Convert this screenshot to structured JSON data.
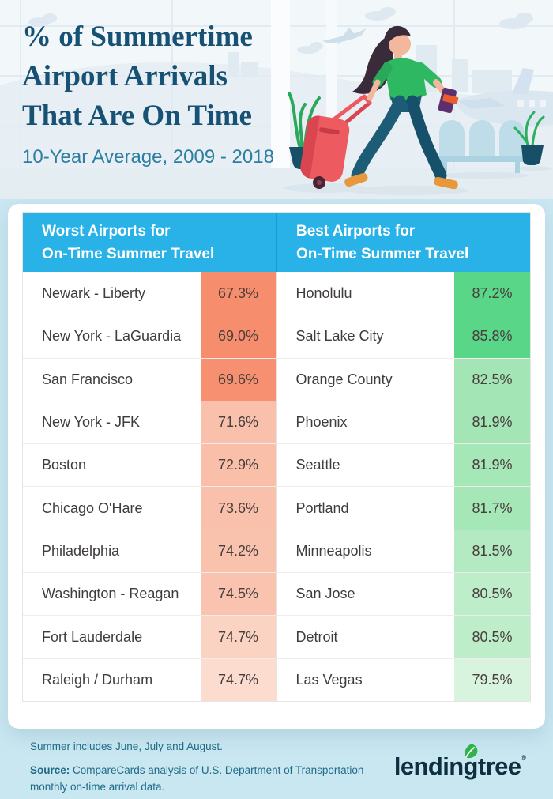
{
  "header": {
    "title_lines": [
      "% of Summertime",
      "Airport Arrivals",
      "That Are On Time"
    ],
    "subtitle": "10-Year Average, 2009 - 2018"
  },
  "table": {
    "worst": {
      "header_line1": "Worst Airports for",
      "header_line2": "On-Time Summer Travel",
      "rows": [
        {
          "airport": "Newark - Liberty",
          "value": "67.3%",
          "color": "#f68e6d"
        },
        {
          "airport": "New York - LaGuardia",
          "value": "69.0%",
          "color": "#f68e6d"
        },
        {
          "airport": "San Francisco",
          "value": "69.6%",
          "color": "#f69071"
        },
        {
          "airport": "New York - JFK",
          "value": "71.6%",
          "color": "#f9c0ab"
        },
        {
          "airport": "Boston",
          "value": "72.9%",
          "color": "#f9bfa9"
        },
        {
          "airport": "Chicago O'Hare",
          "value": "73.6%",
          "color": "#f9c0ab"
        },
        {
          "airport": "Philadelphia",
          "value": "74.2%",
          "color": "#f9c2ad"
        },
        {
          "airport": "Washington - Reagan",
          "value": "74.5%",
          "color": "#f9c3af"
        },
        {
          "airport": "Fort Lauderdale",
          "value": "74.7%",
          "color": "#fbd3c3"
        },
        {
          "airport": "Raleigh / Durham",
          "value": "74.7%",
          "color": "#fcdccf"
        }
      ]
    },
    "best": {
      "header_line1": "Best Airports for",
      "header_line2": "On-Time Summer Travel",
      "rows": [
        {
          "airport": "Honolulu",
          "value": "87.2%",
          "color": "#5ad689"
        },
        {
          "airport": "Salt Lake City",
          "value": "85.8%",
          "color": "#5ad689"
        },
        {
          "airport": "Orange County",
          "value": "82.5%",
          "color": "#a3e5b5"
        },
        {
          "airport": "Phoenix",
          "value": "81.9%",
          "color": "#a3e5b5"
        },
        {
          "airport": "Seattle",
          "value": "81.9%",
          "color": "#a6e7b8"
        },
        {
          "airport": "Portland",
          "value": "81.7%",
          "color": "#a6e7b8"
        },
        {
          "airport": "Minneapolis",
          "value": "81.5%",
          "color": "#b4eac1"
        },
        {
          "airport": "San Jose",
          "value": "80.5%",
          "color": "#bdedc9"
        },
        {
          "airport": "Detroit",
          "value": "80.5%",
          "color": "#bdedc9"
        },
        {
          "airport": "Las Vegas",
          "value": "79.5%",
          "color": "#d8f4de"
        }
      ]
    }
  },
  "footer": {
    "note": "Summer includes June, July and August.",
    "source_label": "Source:",
    "source_text": " CompareCards analysis of U.S. Department of Transportation monthly on-time arrival data.",
    "logo_text": "lendingtree",
    "logo_mark": "®"
  },
  "colors": {
    "header_blue": "#29b2e8",
    "title_navy": "#175173",
    "subtitle_teal": "#2d7ea0",
    "page_bg": "#c9e7f1",
    "banner_bg": "#f2f7fa",
    "footer_text": "#1e6a87",
    "logo_navy": "#0e2f40",
    "leaf_green": "#2fb34a",
    "worst_dark": "#f68e6d",
    "worst_light": "#fcdccf",
    "best_dark": "#5ad689",
    "best_light": "#d8f4de"
  },
  "chart_data": {
    "type": "table",
    "title": "% of Summertime Airport Arrivals That Are On Time",
    "subtitle": "10-Year Average, 2009 - 2018",
    "series": [
      {
        "name": "Worst Airports for On-Time Summer Travel",
        "categories": [
          "Newark - Liberty",
          "New York - LaGuardia",
          "San Francisco",
          "New York - JFK",
          "Boston",
          "Chicago O'Hare",
          "Philadelphia",
          "Washington - Reagan",
          "Fort Lauderdale",
          "Raleigh / Durham"
        ],
        "values": [
          67.3,
          69.0,
          69.6,
          71.6,
          72.9,
          73.6,
          74.2,
          74.5,
          74.7,
          74.7
        ]
      },
      {
        "name": "Best Airports for On-Time Summer Travel",
        "categories": [
          "Honolulu",
          "Salt Lake City",
          "Orange County",
          "Phoenix",
          "Seattle",
          "Portland",
          "Minneapolis",
          "San Jose",
          "Detroit",
          "Las Vegas"
        ],
        "values": [
          87.2,
          85.8,
          82.5,
          81.9,
          81.9,
          81.7,
          81.5,
          80.5,
          80.5,
          79.5
        ]
      }
    ],
    "units": "percent",
    "source": "CompareCards analysis of U.S. Department of Transportation monthly on-time arrival data."
  }
}
